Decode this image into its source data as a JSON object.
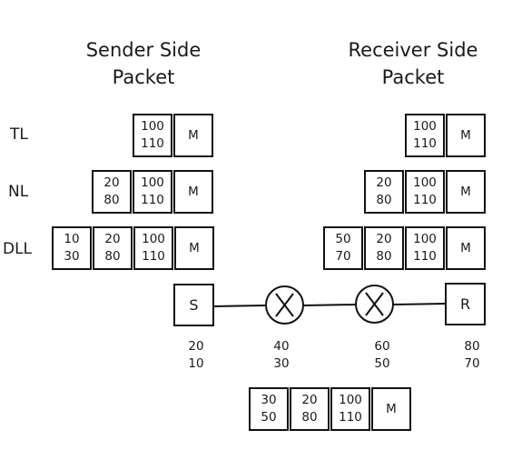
{
  "sender": {
    "title_line1": "Sender Side",
    "title_line2": "Packet"
  },
  "receiver": {
    "title_line1": "Receiver Side",
    "title_line2": "Packet"
  },
  "layers": {
    "tl": "TL",
    "nl": "NL",
    "dll": "DLL"
  },
  "headers": {
    "message": "M",
    "tl": {
      "a": "100",
      "b": "110"
    },
    "nl": {
      "a": "20",
      "b": "80"
    },
    "dll_sender": {
      "a": "10",
      "b": "30"
    },
    "dll_receiver": {
      "a": "50",
      "b": "70"
    },
    "dll_middle": {
      "a": "30",
      "b": "50"
    }
  },
  "nodes": {
    "sender": "S",
    "receiver": "R"
  },
  "addresses": [
    {
      "a": "20",
      "b": "10"
    },
    {
      "a": "40",
      "b": "30"
    },
    {
      "a": "60",
      "b": "50"
    },
    {
      "a": "80",
      "b": "70"
    }
  ]
}
